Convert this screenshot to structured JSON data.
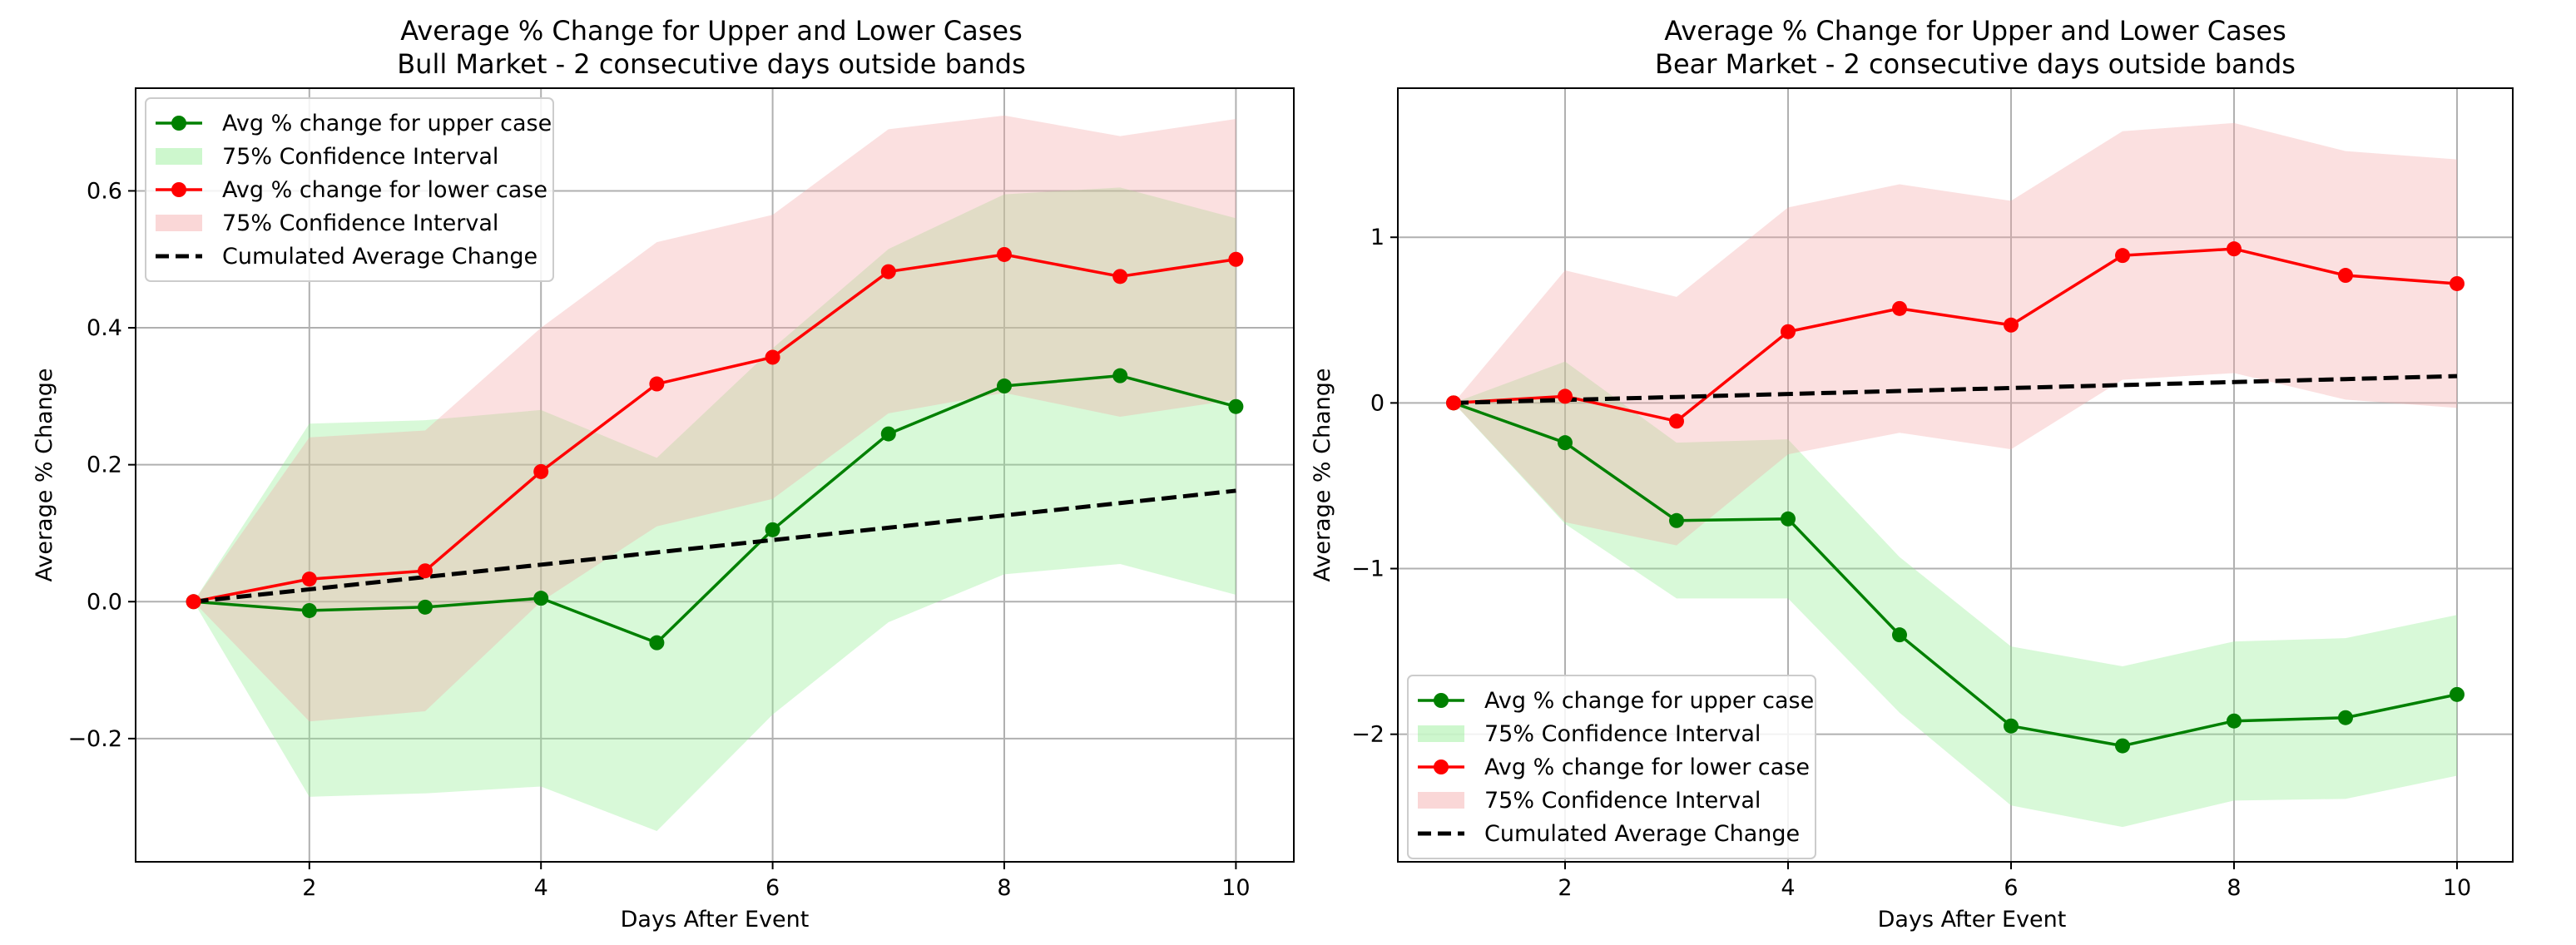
{
  "chart_data": [
    {
      "type": "line",
      "title": "Average % Change for Upper and Lower Cases",
      "subtitle": "Bull Market - 2 consecutive days outside bands",
      "xlabel": "Days After Event",
      "ylabel": "Average % Change",
      "x": [
        1,
        2,
        3,
        4,
        5,
        6,
        7,
        8,
        9,
        10
      ],
      "xlim": [
        0.5,
        10.5
      ],
      "ylim": [
        -0.38,
        0.75
      ],
      "xticks": [
        2,
        4,
        6,
        8,
        10
      ],
      "yticks": [
        -0.2,
        0.0,
        0.2,
        0.4,
        0.6
      ],
      "ytick_labels": [
        "−0.2",
        "0.0",
        "0.2",
        "0.4",
        "0.6"
      ],
      "grid": true,
      "legend_position": "upper-left",
      "series": [
        {
          "name": "Avg % change for upper case",
          "color": "#008000",
          "marker": "circle",
          "values": [
            0.0,
            -0.013,
            -0.008,
            0.005,
            -0.06,
            0.105,
            0.245,
            0.315,
            0.33,
            0.285
          ],
          "ci": {
            "name": "75% Confidence Interval",
            "color": "#90ee90",
            "lower": [
              0.0,
              -0.285,
              -0.28,
              -0.27,
              -0.335,
              -0.165,
              -0.03,
              0.04,
              0.055,
              0.01
            ],
            "upper": [
              0.0,
              0.26,
              0.265,
              0.28,
              0.21,
              0.37,
              0.515,
              0.595,
              0.605,
              0.56
            ]
          }
        },
        {
          "name": "Avg % change for lower case",
          "color": "#ff0000",
          "marker": "circle",
          "values": [
            0.0,
            0.033,
            0.045,
            0.19,
            0.318,
            0.357,
            0.482,
            0.507,
            0.475,
            0.5
          ],
          "ci": {
            "name": "75% Confidence Interval",
            "color": "#f4a6a6",
            "lower": [
              0.0,
              -0.175,
              -0.16,
              0.0,
              0.11,
              0.15,
              0.275,
              0.305,
              0.27,
              0.295
            ],
            "upper": [
              0.0,
              0.24,
              0.25,
              0.4,
              0.525,
              0.565,
              0.69,
              0.71,
              0.68,
              0.705
            ]
          }
        },
        {
          "name": "Cumulated Average Change",
          "color": "#000000",
          "style": "dashed",
          "values": [
            0.0,
            0.018,
            0.036,
            0.054,
            0.072,
            0.09,
            0.108,
            0.126,
            0.144,
            0.162
          ]
        }
      ]
    },
    {
      "type": "line",
      "title": "Average % Change for Upper and Lower Cases",
      "subtitle": "Bear Market - 2 consecutive days outside bands",
      "xlabel": "Days After Event",
      "ylabel": "Average % Change",
      "x": [
        1,
        2,
        3,
        4,
        5,
        6,
        7,
        8,
        9,
        10
      ],
      "xlim": [
        0.5,
        10.5
      ],
      "ylim": [
        -2.77,
        1.9
      ],
      "xticks": [
        2,
        4,
        6,
        8,
        10
      ],
      "yticks": [
        -2,
        -1,
        0,
        1
      ],
      "ytick_labels": [
        "−2",
        "−1",
        "0",
        "1"
      ],
      "grid": true,
      "legend_position": "lower-left",
      "series": [
        {
          "name": "Avg % change for upper case",
          "color": "#008000",
          "marker": "circle",
          "values": [
            0.0,
            -0.24,
            -0.71,
            -0.7,
            -1.4,
            -1.95,
            -2.07,
            -1.92,
            -1.9,
            -1.76
          ],
          "ci": {
            "name": "75% Confidence Interval",
            "color": "#90ee90",
            "lower": [
              0.0,
              -0.73,
              -1.18,
              -1.18,
              -1.87,
              -2.43,
              -2.56,
              -2.4,
              -2.39,
              -2.25
            ],
            "upper": [
              0.0,
              0.25,
              -0.24,
              -0.22,
              -0.93,
              -1.47,
              -1.59,
              -1.44,
              -1.42,
              -1.28
            ]
          }
        },
        {
          "name": "Avg % change for lower case",
          "color": "#ff0000",
          "marker": "circle",
          "values": [
            0.0,
            0.04,
            -0.11,
            0.43,
            0.57,
            0.47,
            0.89,
            0.93,
            0.77,
            0.72
          ],
          "ci": {
            "name": "75% Confidence Interval",
            "color": "#f4a6a6",
            "lower": [
              0.0,
              -0.72,
              -0.86,
              -0.31,
              -0.18,
              -0.28,
              0.14,
              0.18,
              0.02,
              -0.03
            ],
            "upper": [
              0.0,
              0.8,
              0.64,
              1.18,
              1.32,
              1.22,
              1.64,
              1.69,
              1.52,
              1.47
            ]
          }
        },
        {
          "name": "Cumulated Average Change",
          "color": "#000000",
          "style": "dashed",
          "values": [
            0.0,
            0.018,
            0.036,
            0.054,
            0.072,
            0.09,
            0.108,
            0.126,
            0.144,
            0.162
          ]
        }
      ]
    }
  ]
}
